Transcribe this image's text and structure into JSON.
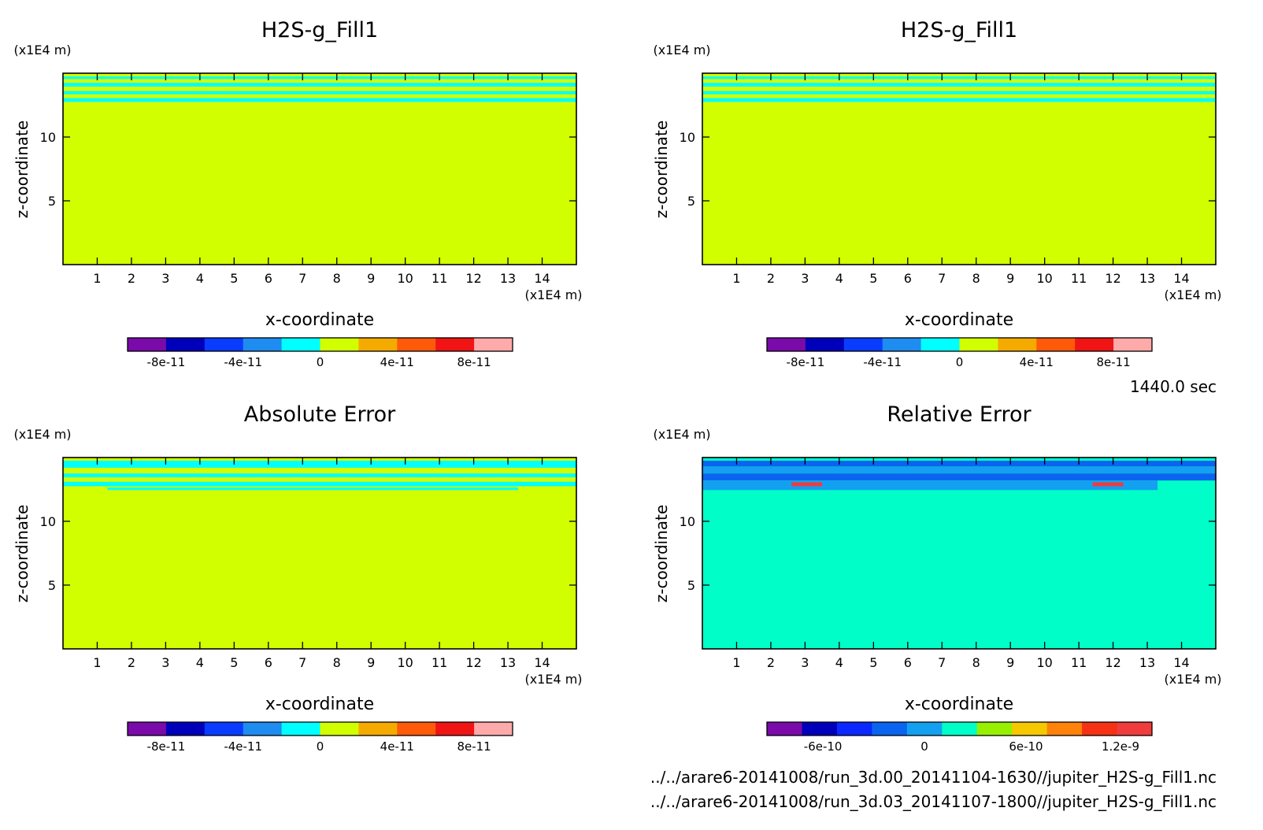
{
  "chart_data": [
    {
      "type": "heatmap",
      "panel": "top-left",
      "title": "H2S-g_Fill1",
      "xlabel": "x-coordinate",
      "ylabel": "z-coordinate",
      "x_unit": "(x1E4 m)",
      "y_unit": "(x1E4 m)",
      "xlim": [
        0,
        15
      ],
      "ylim": [
        0,
        15
      ],
      "x_ticks": [
        "1",
        "2",
        "3",
        "4",
        "5",
        "6",
        "7",
        "8",
        "9",
        "10",
        "11",
        "12",
        "13",
        "14"
      ],
      "y_ticks": [
        "5",
        "10"
      ],
      "field": {
        "background_level": "0 to 2e-11",
        "bands": [
          {
            "z": [
              14.55,
              14.75
            ],
            "level": "-2e-11 to 0"
          },
          {
            "z": [
              13.95,
              14.25
            ],
            "level": "-2e-11 to 0"
          },
          {
            "z": [
              13.35,
              13.6
            ],
            "level": "-2e-11 to 0"
          },
          {
            "z": [
              12.75,
              13.05
            ],
            "level": "-2e-11 to 0"
          }
        ]
      },
      "colorbar": {
        "colors": [
          "#7a0aaa",
          "#0000bb",
          "#0a3cff",
          "#1e8cf0",
          "#00ffff",
          "#d2ff00",
          "#f5aa00",
          "#ff5a0a",
          "#f01414",
          "#ffaaaa"
        ],
        "tick_labels": [
          "-8e-11",
          "-4e-11",
          "0",
          "4e-11",
          "8e-11"
        ]
      }
    },
    {
      "type": "heatmap",
      "panel": "top-right",
      "title": "H2S-g_Fill1",
      "xlabel": "x-coordinate",
      "ylabel": "z-coordinate",
      "x_unit": "(x1E4 m)",
      "y_unit": "(x1E4 m)",
      "xlim": [
        0,
        15
      ],
      "ylim": [
        0,
        15
      ],
      "x_ticks": [
        "1",
        "2",
        "3",
        "4",
        "5",
        "6",
        "7",
        "8",
        "9",
        "10",
        "11",
        "12",
        "13",
        "14"
      ],
      "y_ticks": [
        "5",
        "10"
      ],
      "field": {
        "background_level": "0 to 2e-11",
        "bands": [
          {
            "z": [
              14.55,
              14.75
            ],
            "level": "-2e-11 to 0"
          },
          {
            "z": [
              13.95,
              14.25
            ],
            "level": "-2e-11 to 0"
          },
          {
            "z": [
              13.35,
              13.6
            ],
            "level": "-2e-11 to 0"
          },
          {
            "z": [
              12.75,
              13.05
            ],
            "level": "-2e-11 to 0"
          }
        ]
      },
      "colorbar": {
        "colors": [
          "#7a0aaa",
          "#0000bb",
          "#0a3cff",
          "#1e8cf0",
          "#00ffff",
          "#d2ff00",
          "#f5aa00",
          "#ff5a0a",
          "#f01414",
          "#ffaaaa"
        ],
        "tick_labels": [
          "-8e-11",
          "-4e-11",
          "0",
          "4e-11",
          "8e-11"
        ]
      }
    },
    {
      "type": "heatmap",
      "panel": "bottom-left",
      "title": "Absolute Error",
      "xlabel": "x-coordinate",
      "ylabel": "z-coordinate",
      "x_unit": "(x1E4 m)",
      "y_unit": "(x1E4 m)",
      "xlim": [
        0,
        15
      ],
      "ylim": [
        0,
        15
      ],
      "x_ticks": [
        "1",
        "2",
        "3",
        "4",
        "5",
        "6",
        "7",
        "8",
        "9",
        "10",
        "11",
        "12",
        "13",
        "14"
      ],
      "y_ticks": [
        "5",
        "10"
      ],
      "field": {
        "background_level": "0 to 2e-11",
        "bands": [
          {
            "z": [
              14.2,
              14.75
            ],
            "level": "-2e-11 to 0"
          },
          {
            "z": [
              13.45,
              13.75
            ],
            "level": "-2e-11 to 0"
          },
          {
            "z": [
              12.75,
              13.1
            ],
            "level": "-2e-11 to 0"
          },
          {
            "z": [
              12.45,
              12.65
            ],
            "x": [
              1.3,
              13.3
            ],
            "level": "-2e-11 to 0"
          }
        ]
      },
      "colorbar": {
        "colors": [
          "#7a0aaa",
          "#0000bb",
          "#0a3cff",
          "#1e8cf0",
          "#00ffff",
          "#d2ff00",
          "#f5aa00",
          "#ff5a0a",
          "#f01414",
          "#ffaaaa"
        ],
        "tick_labels": [
          "-8e-11",
          "-4e-11",
          "0",
          "4e-11",
          "8e-11"
        ]
      }
    },
    {
      "type": "heatmap",
      "panel": "bottom-right",
      "title": "Relative Error",
      "xlabel": "x-coordinate",
      "ylabel": "z-coordinate",
      "x_unit": "(x1E4 m)",
      "y_unit": "(x1E4 m)",
      "xlim": [
        0,
        15
      ],
      "ylim": [
        0,
        15
      ],
      "x_ticks": [
        "1",
        "2",
        "3",
        "4",
        "5",
        "6",
        "7",
        "8",
        "9",
        "10",
        "11",
        "12",
        "13",
        "14"
      ],
      "y_ticks": [
        "5",
        "10"
      ],
      "field": {
        "background_level": "0 to 1.5e-10",
        "bands": [
          {
            "z": [
              14.3,
              14.75
            ],
            "level": "-3e-10 to -1.5e-10"
          },
          {
            "z": [
              13.75,
              14.3
            ],
            "level": "-1.5e-10 to 0"
          },
          {
            "z": [
              13.2,
              13.75
            ],
            "level": "-3e-10 to -1.5e-10"
          },
          {
            "z": [
              12.45,
              13.2
            ],
            "x": [
              0,
              13.3
            ],
            "level": "-1.5e-10 to 0"
          },
          {
            "z": [
              12.75,
              13.05
            ],
            "x": [
              2.6,
              3.5
            ],
            "level": "1.05e-9 to 1.2e-9"
          },
          {
            "z": [
              12.75,
              13.05
            ],
            "x": [
              11.4,
              12.3
            ],
            "level": "1.05e-9 to 1.2e-9"
          }
        ]
      },
      "colorbar": {
        "colors": [
          "#7a0aaa",
          "#0000bb",
          "#0a28ff",
          "#0a64f0",
          "#14a0f0",
          "#00ffc8",
          "#96f000",
          "#f5c800",
          "#ff820a",
          "#f53214",
          "#f03c3c"
        ],
        "tick_labels": [
          "-6e-10",
          "0",
          "6e-10",
          "1.2e-9"
        ]
      }
    }
  ],
  "time_label": "1440.0 sec",
  "file_paths": [
    "../../arare6-20141008/run_3d.00_20141104-1630//jupiter_H2S-g_Fill1.nc",
    "../../arare6-20141008/run_3d.03_20141107-1800//jupiter_H2S-g_Fill1.nc"
  ]
}
